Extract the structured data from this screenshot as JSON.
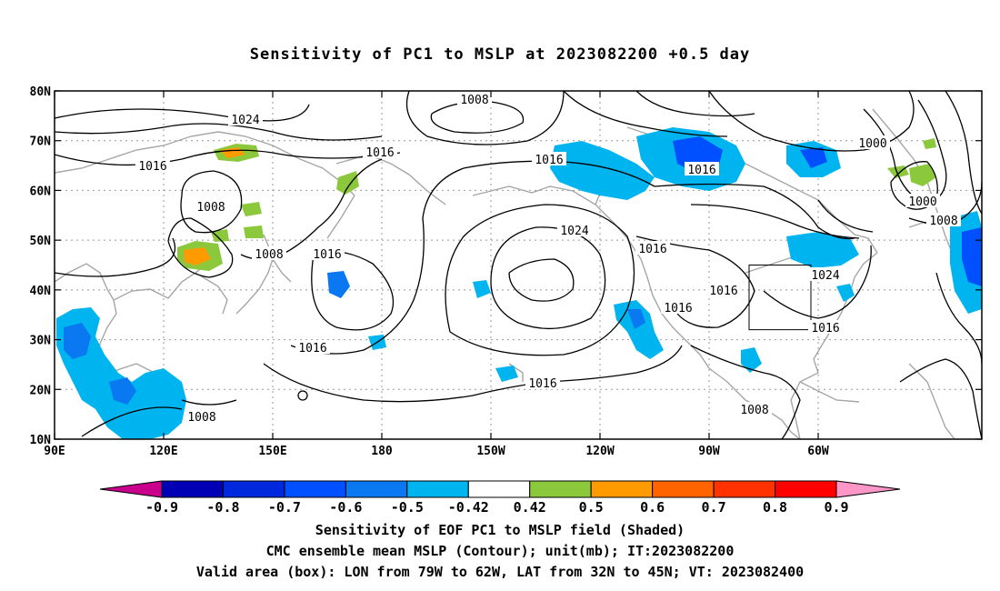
{
  "title": "Sensitivity of PC1 to MSLP at 2023082200 +0.5 day",
  "map": {
    "lon_labels": [
      "90E",
      "120E",
      "150E",
      "180",
      "150W",
      "120W",
      "90W",
      "60W"
    ],
    "lat_labels": [
      "10N",
      "20N",
      "30N",
      "40N",
      "50N",
      "60N",
      "70N",
      "80N"
    ],
    "contour_labels": [
      {
        "text": "1008"
      },
      {
        "text": "1024"
      },
      {
        "text": "1016"
      },
      {
        "text": "1016"
      },
      {
        "text": "1008"
      },
      {
        "text": "1016"
      },
      {
        "text": "1008"
      },
      {
        "text": "1016"
      },
      {
        "text": "1008"
      },
      {
        "text": "1016"
      },
      {
        "text": "1016"
      },
      {
        "text": "1024"
      },
      {
        "text": "1016"
      },
      {
        "text": "1016"
      },
      {
        "text": "1016"
      },
      {
        "text": "1016"
      },
      {
        "text": "1000"
      },
      {
        "text": "1000"
      },
      {
        "text": "1008"
      },
      {
        "text": "1024"
      },
      {
        "text": "1016"
      },
      {
        "text": "1008"
      }
    ],
    "valid_box": {
      "lon_min": -79,
      "lon_max": -62,
      "lat_min": 32,
      "lat_max": 45
    }
  },
  "colorbar": {
    "labels": [
      "-0.9",
      "-0.8",
      "-0.7",
      "-0.6",
      "-0.5",
      "-0.42",
      "0.42",
      "0.5",
      "0.6",
      "0.7",
      "0.8",
      "0.9"
    ],
    "colors": [
      "#0000b4",
      "#0028dc",
      "#0050ff",
      "#0a78f0",
      "#00b4f0",
      "#ffffff",
      "#8cc83c",
      "#ff9b00",
      "#ff6400",
      "#ff3200",
      "#ff0000"
    ],
    "low_extend_color": "#c8008c",
    "high_extend_color": "#ff96c8"
  },
  "captions": {
    "line1": "Sensitivity of EOF PC1 to MSLP field (Shaded)",
    "line2": "CMC ensemble mean MSLP (Contour); unit(mb); IT:2023082200",
    "line3": "Valid area (box): LON from 79W to 62W, LAT from 32N to 45N; VT: 2023082400"
  }
}
